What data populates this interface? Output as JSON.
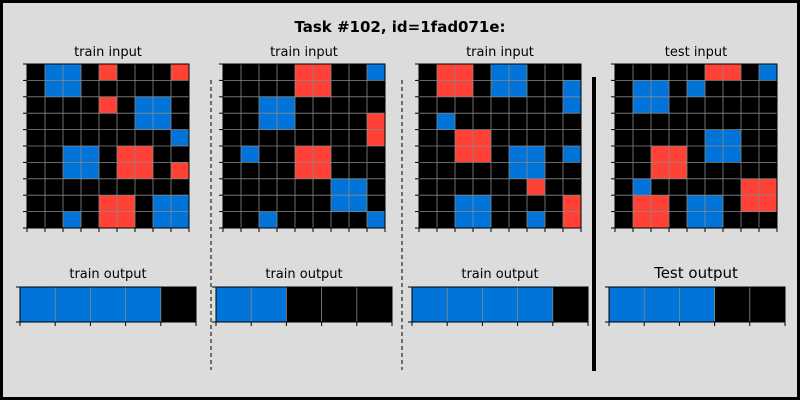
{
  "header": {
    "title": "Task #102, id=1fad071e:"
  },
  "colors": {
    "background": "#dcdcdc",
    "cell_black": "#000000",
    "cell_blue": "#0074d9",
    "cell_red": "#ff4136",
    "grid_line": "#888888"
  },
  "palette": [
    "#000000",
    "#0074d9",
    "#ff4136"
  ],
  "panels": [
    {
      "input_label": "train input",
      "output_label": "train output",
      "input": [
        [
          0,
          1,
          1,
          0,
          2,
          0,
          0,
          0,
          2
        ],
        [
          0,
          1,
          1,
          0,
          0,
          0,
          0,
          0,
          0
        ],
        [
          0,
          0,
          0,
          0,
          2,
          0,
          1,
          1,
          0
        ],
        [
          0,
          0,
          0,
          0,
          0,
          0,
          1,
          1,
          0
        ],
        [
          0,
          0,
          0,
          0,
          0,
          0,
          0,
          0,
          1
        ],
        [
          0,
          0,
          1,
          1,
          0,
          2,
          2,
          0,
          0
        ],
        [
          0,
          0,
          1,
          1,
          0,
          2,
          2,
          0,
          2
        ],
        [
          0,
          0,
          0,
          0,
          0,
          0,
          0,
          0,
          0
        ],
        [
          0,
          0,
          0,
          0,
          2,
          2,
          0,
          1,
          1
        ],
        [
          0,
          0,
          1,
          0,
          2,
          2,
          0,
          1,
          1
        ]
      ],
      "output": [
        [
          1,
          1,
          1,
          1,
          0
        ]
      ]
    },
    {
      "input_label": "train input",
      "output_label": "train output",
      "input": [
        [
          0,
          0,
          0,
          0,
          2,
          2,
          0,
          0,
          1
        ],
        [
          0,
          0,
          0,
          0,
          2,
          2,
          0,
          0,
          0
        ],
        [
          0,
          0,
          1,
          1,
          0,
          0,
          0,
          0,
          0
        ],
        [
          0,
          0,
          1,
          1,
          0,
          0,
          0,
          0,
          2
        ],
        [
          0,
          0,
          0,
          0,
          0,
          0,
          0,
          0,
          2
        ],
        [
          0,
          1,
          0,
          0,
          2,
          2,
          0,
          0,
          0
        ],
        [
          0,
          0,
          0,
          0,
          2,
          2,
          0,
          0,
          0
        ],
        [
          0,
          0,
          0,
          0,
          0,
          0,
          1,
          1,
          0
        ],
        [
          0,
          0,
          0,
          0,
          0,
          0,
          1,
          1,
          0
        ],
        [
          0,
          0,
          1,
          0,
          0,
          0,
          0,
          0,
          1
        ]
      ],
      "output": [
        [
          1,
          1,
          0,
          0,
          0
        ]
      ]
    },
    {
      "input_label": "train input",
      "output_label": "train output",
      "input": [
        [
          0,
          2,
          2,
          0,
          1,
          1,
          0,
          0,
          0
        ],
        [
          0,
          2,
          2,
          0,
          1,
          1,
          0,
          0,
          1
        ],
        [
          0,
          0,
          0,
          0,
          0,
          0,
          0,
          0,
          1
        ],
        [
          0,
          1,
          0,
          0,
          0,
          0,
          0,
          0,
          0
        ],
        [
          0,
          0,
          2,
          2,
          0,
          0,
          0,
          0,
          0
        ],
        [
          0,
          0,
          2,
          2,
          0,
          1,
          1,
          0,
          1
        ],
        [
          0,
          0,
          0,
          0,
          0,
          1,
          1,
          0,
          0
        ],
        [
          0,
          0,
          0,
          0,
          0,
          0,
          2,
          0,
          0
        ],
        [
          0,
          0,
          1,
          1,
          0,
          0,
          0,
          0,
          2
        ],
        [
          0,
          0,
          1,
          1,
          0,
          0,
          1,
          0,
          2
        ]
      ],
      "output": [
        [
          1,
          1,
          1,
          1,
          0
        ]
      ]
    },
    {
      "input_label": "test input",
      "output_label": "Test output",
      "input": [
        [
          0,
          0,
          0,
          0,
          0,
          2,
          2,
          0,
          1
        ],
        [
          0,
          1,
          1,
          0,
          1,
          0,
          0,
          0,
          0
        ],
        [
          0,
          1,
          1,
          0,
          0,
          0,
          0,
          0,
          0
        ],
        [
          0,
          0,
          0,
          0,
          0,
          0,
          0,
          0,
          0
        ],
        [
          0,
          0,
          0,
          0,
          0,
          1,
          1,
          0,
          0
        ],
        [
          0,
          0,
          2,
          2,
          0,
          1,
          1,
          0,
          0
        ],
        [
          0,
          0,
          2,
          2,
          0,
          0,
          0,
          0,
          0
        ],
        [
          0,
          1,
          0,
          0,
          0,
          0,
          0,
          2,
          2
        ],
        [
          0,
          2,
          2,
          0,
          1,
          1,
          0,
          2,
          2
        ],
        [
          0,
          2,
          2,
          0,
          1,
          1,
          0,
          0,
          0
        ]
      ],
      "output": [
        [
          1,
          1,
          1,
          0,
          0
        ]
      ]
    }
  ]
}
